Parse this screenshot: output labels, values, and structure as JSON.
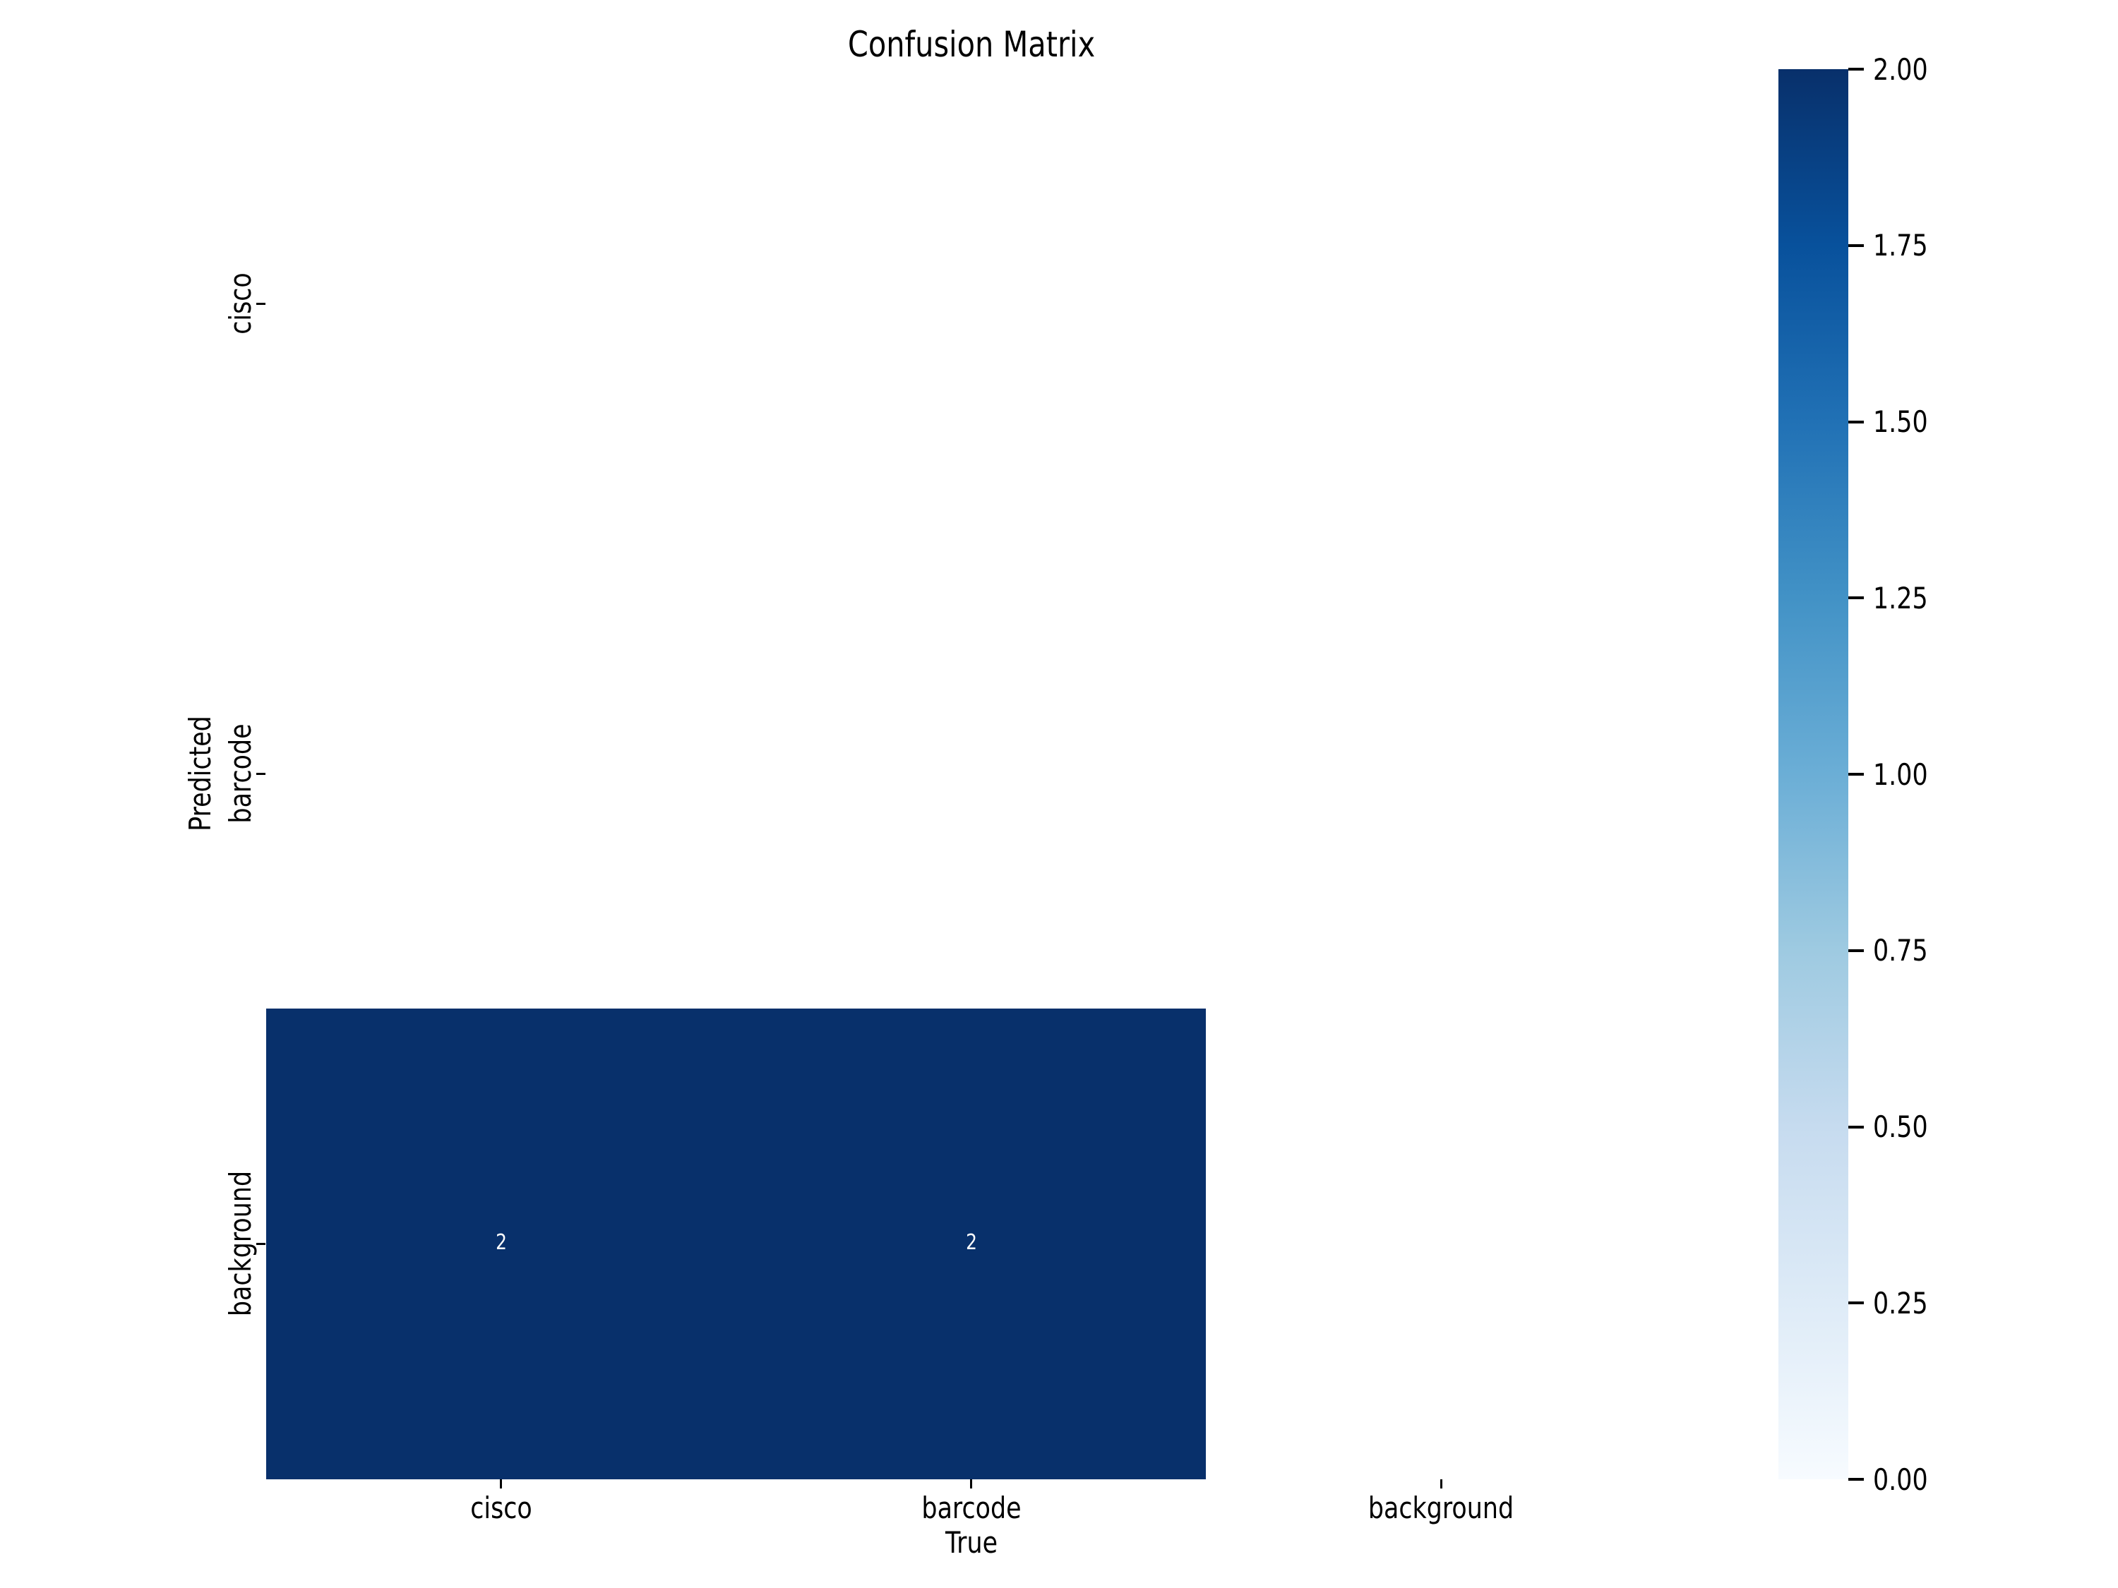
{
  "chart_data": {
    "type": "heatmap",
    "title": "Confusion Matrix",
    "xlabel": "True",
    "ylabel": "Predicted",
    "x_categories": [
      "cisco",
      "barcode",
      "background"
    ],
    "y_categories": [
      "cisco",
      "barcode",
      "background"
    ],
    "matrix": [
      [
        0,
        0,
        0
      ],
      [
        0,
        0,
        0
      ],
      [
        2,
        2,
        0
      ]
    ],
    "annotations": [
      {
        "row": 2,
        "col": 0,
        "text": "2"
      },
      {
        "row": 2,
        "col": 1,
        "text": "2"
      }
    ],
    "vmin": 0,
    "vmax": 2,
    "colormap": "Blues",
    "colorbar_ticks": [
      "0.00",
      "0.25",
      "0.50",
      "0.75",
      "1.00",
      "1.25",
      "1.50",
      "1.75",
      "2.00"
    ],
    "legend_position": "right-colorbar",
    "grid": false
  },
  "colors": {
    "cmap_low": "#f7fbff",
    "cmap_high": "#08306b",
    "annotation_text": "#ffffff",
    "text": "#000000"
  }
}
